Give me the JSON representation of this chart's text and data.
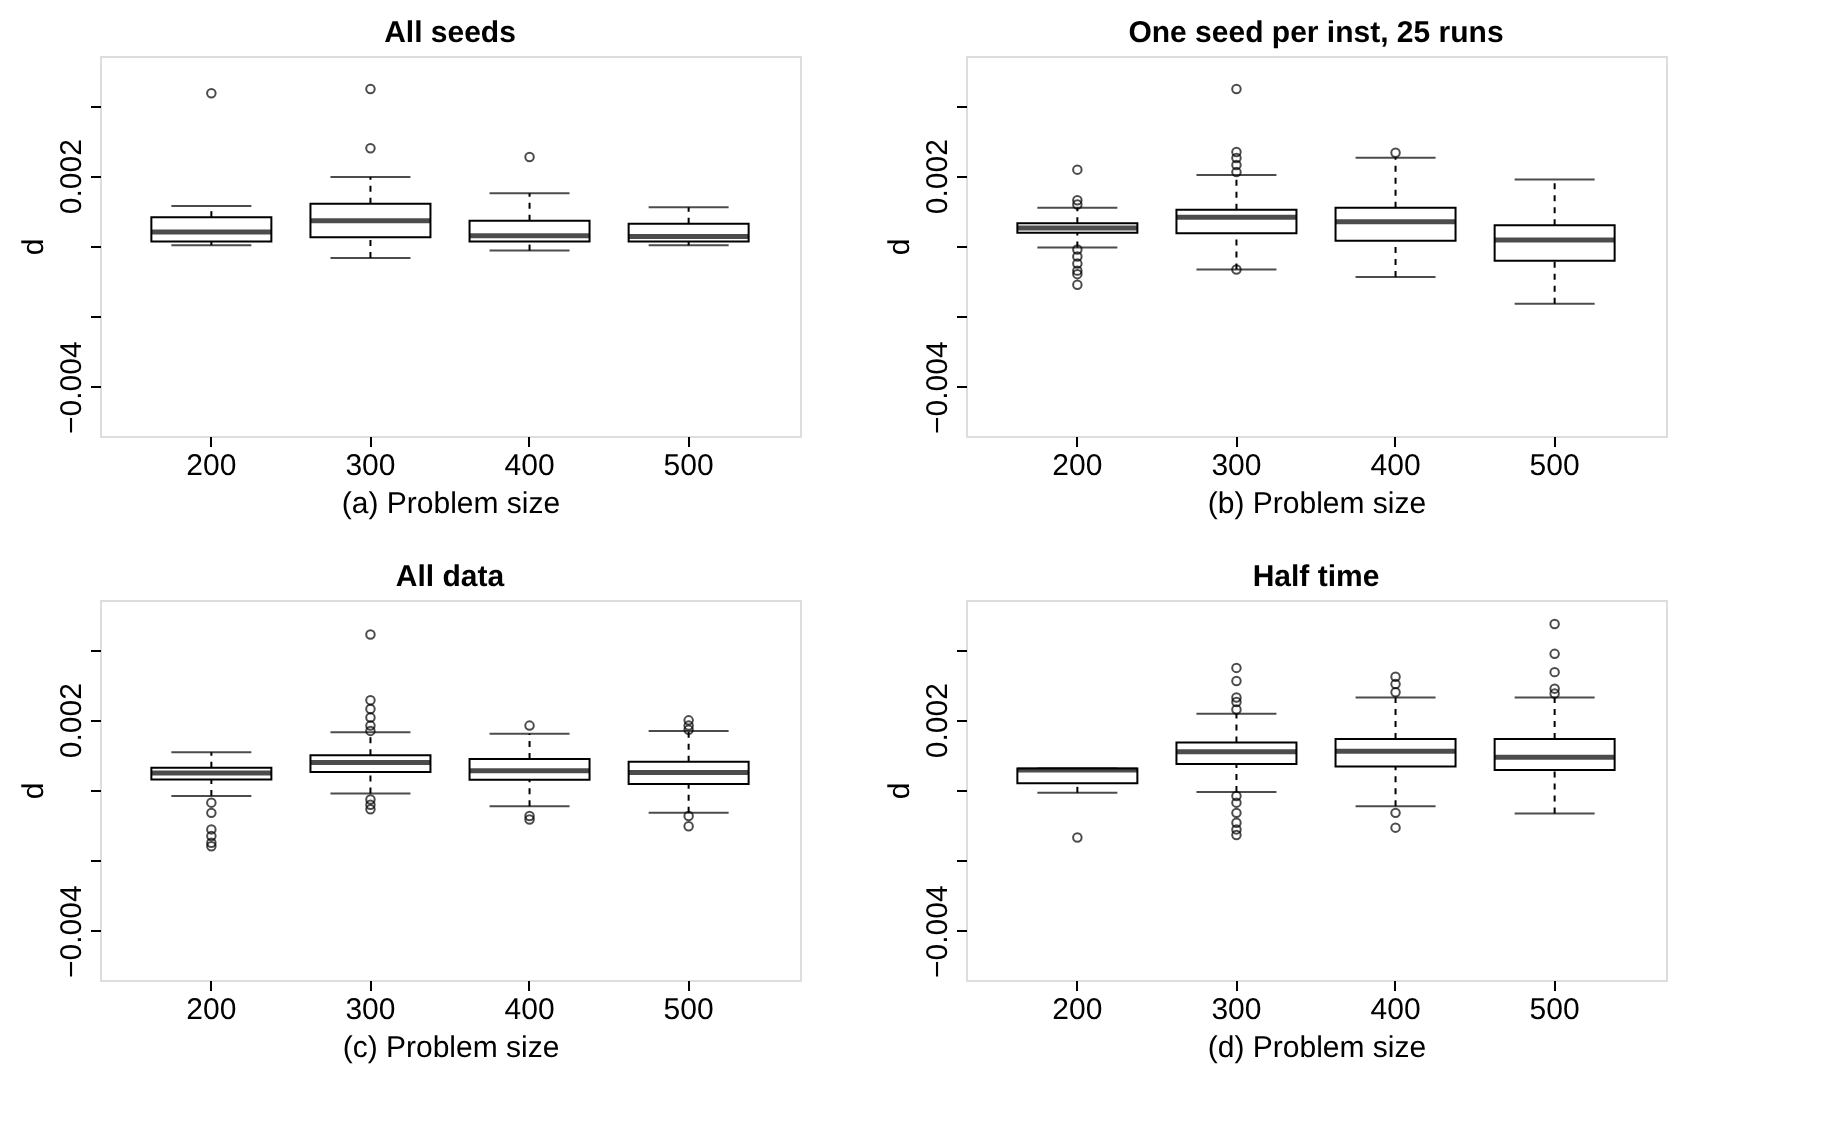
{
  "chart_data": [
    {
      "type": "box",
      "title": "All seeds",
      "xlabel": "(a) Problem size",
      "ylabel": "d",
      "categories": [
        "200",
        "300",
        "400",
        "500"
      ],
      "ylim": [
        -0.0054,
        0.0054
      ],
      "yticks": [
        {
          "value": -0.004,
          "label": "−0.004"
        },
        {
          "value": -0.002,
          "label": null
        },
        {
          "value": 0,
          "label": null
        },
        {
          "value": 0.002,
          "label": "0.002"
        },
        {
          "value": 0.004,
          "label": null
        }
      ],
      "grid": false,
      "boxes": [
        {
          "low": 2e-05,
          "q1": 0.00013,
          "median": 0.0004,
          "q3": 0.00082,
          "high": 0.00114,
          "outliers": [
            0.00434
          ]
        },
        {
          "low": -0.00034,
          "q1": 0.00025,
          "median": 0.00072,
          "q3": 0.0012,
          "high": 0.00196,
          "outliers": [
            0.00446,
            0.00278
          ]
        },
        {
          "low": -0.00013,
          "q1": 0.00013,
          "median": 0.00029,
          "q3": 0.00072,
          "high": 0.0015,
          "outliers": [
            0.00253
          ]
        },
        {
          "low": 2e-05,
          "q1": 0.00013,
          "median": 0.00027,
          "q3": 0.00063,
          "high": 0.0011
        }
      ]
    },
    {
      "type": "box",
      "title": "One seed per inst, 25 runs",
      "xlabel": "(b) Problem size",
      "ylabel": "d",
      "categories": [
        "200",
        "300",
        "400",
        "500"
      ],
      "ylim": [
        -0.0054,
        0.0054
      ],
      "yticks": [
        {
          "value": -0.004,
          "label": "−0.004"
        },
        {
          "value": -0.002,
          "label": null
        },
        {
          "value": 0,
          "label": null
        },
        {
          "value": 0.002,
          "label": "0.002"
        },
        {
          "value": 0.004,
          "label": null
        }
      ],
      "grid": false,
      "boxes": [
        {
          "low": -4e-05,
          "q1": 0.00038,
          "median": 0.00051,
          "q3": 0.00065,
          "high": 0.00109,
          "outliers": [
            0.00217,
            0.0013,
            0.00118,
            -0.0001,
            -0.0003,
            -0.0005,
            -0.0007,
            -0.0008,
            -0.0011
          ]
        },
        {
          "low": -0.00067,
          "q1": 0.00036,
          "median": 0.00082,
          "q3": 0.00103,
          "high": 0.00202,
          "outliers": [
            0.00446,
            0.00267,
            0.0025,
            0.0023,
            0.0021,
            -0.00067
          ]
        },
        {
          "low": -0.00088,
          "q1": 0.00015,
          "median": 0.00069,
          "q3": 0.00109,
          "high": 0.00251,
          "outliers": [
            0.00265
          ]
        },
        {
          "low": -0.00164,
          "q1": -0.00042,
          "median": 0.00017,
          "q3": 0.00059,
          "high": 0.00189
        }
      ]
    },
    {
      "type": "box",
      "title": "All data",
      "xlabel": "(c) Problem size",
      "ylabel": "d",
      "categories": [
        "200",
        "300",
        "400",
        "500"
      ],
      "ylim": [
        -0.0054,
        0.0054
      ],
      "yticks": [
        {
          "value": -0.004,
          "label": "−0.004"
        },
        {
          "value": -0.002,
          "label": null
        },
        {
          "value": 0,
          "label": null
        },
        {
          "value": 0.002,
          "label": "0.002"
        },
        {
          "value": 0.004,
          "label": null
        }
      ],
      "grid": false,
      "boxes": [
        {
          "low": -0.00017,
          "q1": 0.0003,
          "median": 0.00048,
          "q3": 0.00063,
          "high": 0.00107,
          "outliers": [
            -0.00036,
            -0.00065,
            -0.00112,
            -0.00131,
            -0.0015,
            -0.0016
          ]
        },
        {
          "low": -0.0001,
          "q1": 0.00051,
          "median": 0.00078,
          "q3": 0.00099,
          "high": 0.00164,
          "outliers": [
            0.00442,
            0.00255,
            0.0023,
            0.00206,
            0.00183,
            0.00168,
            -0.00027,
            -0.00042,
            -0.00055
          ]
        },
        {
          "low": -0.00046,
          "q1": 0.00029,
          "median": 0.00055,
          "q3": 0.00088,
          "high": 0.0016,
          "outliers": [
            0.00183,
            -0.00074,
            -0.00084
          ]
        },
        {
          "low": -0.00065,
          "q1": 0.00017,
          "median": 0.0005,
          "q3": 0.0008,
          "high": 0.00168,
          "outliers": [
            0.00198,
            0.00183,
            0.00171,
            -0.00074,
            -0.00103
          ]
        }
      ]
    },
    {
      "type": "box",
      "title": "Half time",
      "xlabel": "(d) Problem size",
      "ylabel": "d",
      "categories": [
        "200",
        "300",
        "400",
        "500"
      ],
      "ylim": [
        -0.0054,
        0.0054
      ],
      "yticks": [
        {
          "value": -0.004,
          "label": "−0.004"
        },
        {
          "value": -0.002,
          "label": null
        },
        {
          "value": 0,
          "label": null
        },
        {
          "value": 0.002,
          "label": "0.002"
        },
        {
          "value": 0.004,
          "label": null
        }
      ],
      "grid": false,
      "boxes": [
        {
          "low": -8e-05,
          "q1": 0.00019,
          "median": 0.00057,
          "q3": 0.00061,
          "high": 0.00061,
          "outliers": [
            -0.00135
          ]
        },
        {
          "low": -6e-05,
          "q1": 0.00074,
          "median": 0.00109,
          "q3": 0.00135,
          "high": 0.00217,
          "outliers": [
            0.00347,
            0.0031,
            0.00263,
            0.0025,
            0.00229,
            -0.00017,
            -0.00036,
            -0.00065,
            -0.00093,
            -0.00112,
            -0.00128
          ]
        },
        {
          "low": -0.00046,
          "q1": 0.00067,
          "median": 0.0011,
          "q3": 0.00145,
          "high": 0.00263,
          "outliers": [
            0.00322,
            0.00301,
            0.00278,
            -0.00065,
            -0.00107
          ]
        },
        {
          "low": -0.00067,
          "q1": 0.00057,
          "median": 0.00093,
          "q3": 0.00145,
          "high": 0.00263,
          "outliers": [
            0.00472,
            0.00387,
            0.00335,
            0.00288,
            0.00274
          ]
        }
      ]
    }
  ]
}
